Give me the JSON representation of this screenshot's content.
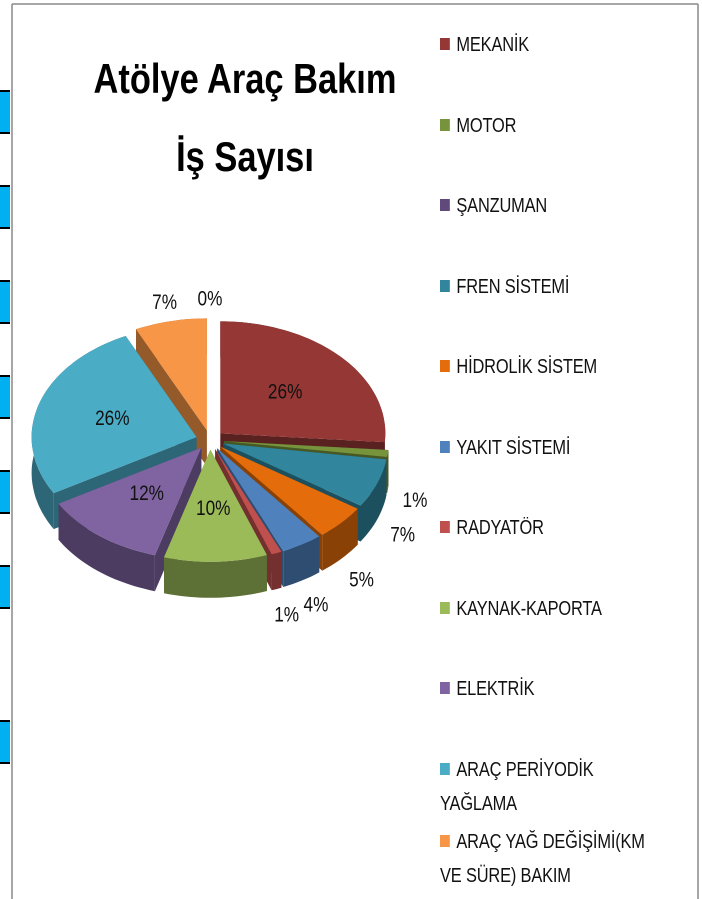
{
  "chart_data": {
    "type": "pie",
    "title": [
      "Atölye Araç Bakım",
      "İş Sayısı"
    ],
    "categories": [
      "MEKANİK",
      "MOTOR",
      "ŞANZUMAN",
      "FREN SİSTEMİ",
      "HİDROLİK SİSTEM",
      "YAKIT SİSTEMİ",
      "RADYATÖR",
      "KAYNAK-KAPORTA",
      "ELEKTRİK",
      "ARAÇ PERİYODİK YAĞLAMA",
      "ARAÇ YAĞ DEĞİŞİMİ(KM VE SÜRE) BAKIM",
      null
    ],
    "values": [
      26,
      1,
      0,
      7,
      5,
      4,
      1,
      10,
      12,
      26,
      7,
      0
    ],
    "value_labels": [
      "26%",
      "1%",
      null,
      "7%",
      "5%",
      "4%",
      "1%",
      "10%",
      "12%",
      "26%",
      "7%",
      "0%"
    ],
    "colors": [
      "#953735",
      "#77933c",
      "#604a7b",
      "#31859c",
      "#e46c0a",
      "#4f81bd",
      "#c0504d",
      "#9bbb59",
      "#8064a2",
      "#4bacc6",
      "#f79646",
      "#2c4d75"
    ]
  }
}
